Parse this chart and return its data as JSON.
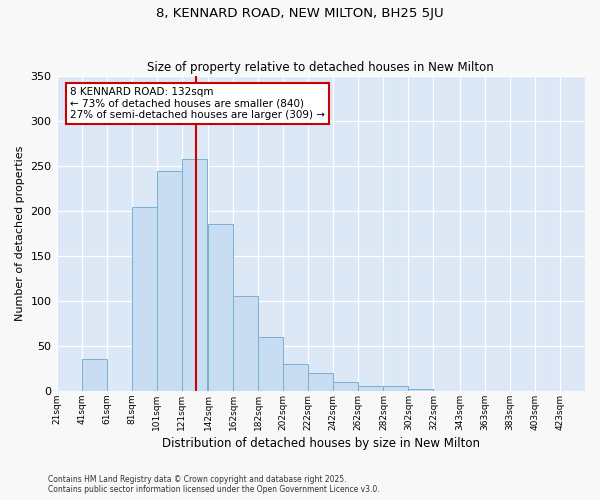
{
  "title": "8, KENNARD ROAD, NEW MILTON, BH25 5JU",
  "subtitle": "Size of property relative to detached houses in New Milton",
  "xlabel": "Distribution of detached houses by size in New Milton",
  "ylabel": "Number of detached properties",
  "bar_categories": [
    "21sqm",
    "41sqm",
    "61sqm",
    "81sqm",
    "101sqm",
    "121sqm",
    "142sqm",
    "162sqm",
    "182sqm",
    "202sqm",
    "222sqm",
    "242sqm",
    "262sqm",
    "282sqm",
    "302sqm",
    "322sqm",
    "343sqm",
    "363sqm",
    "383sqm",
    "403sqm",
    "423sqm"
  ],
  "bar_values": [
    0,
    35,
    0,
    204,
    245,
    258,
    185,
    106,
    60,
    30,
    20,
    10,
    5,
    5,
    2,
    0,
    0,
    0,
    0,
    0,
    0
  ],
  "bar_color": "#c8ddf2",
  "bar_edge_color": "#7aafd4",
  "vline_color": "#cc0000",
  "annotation_title": "8 KENNARD ROAD: 132sqm",
  "annotation_line1": "← 73% of detached houses are smaller (840)",
  "annotation_line2": "27% of semi-detached houses are larger (309) →",
  "annotation_box_edge": "#cc0000",
  "ylim": [
    0,
    350
  ],
  "yticks": [
    0,
    50,
    100,
    150,
    200,
    250,
    300,
    350
  ],
  "property_sqm": 132,
  "footer1": "Contains HM Land Registry data © Crown copyright and database right 2025.",
  "footer2": "Contains public sector information licensed under the Open Government Licence v3.0.",
  "fig_bg_color": "#f8f8f8",
  "plot_bg_color": "#dce8f5"
}
